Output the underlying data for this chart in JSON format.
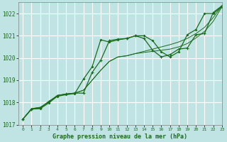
{
  "title": "Graphe pression niveau de la mer (hPa)",
  "bg_color": "#c0e4e4",
  "grid_color": "#ffffff",
  "line_color": "#1a6b1a",
  "xlim": [
    -0.5,
    23
  ],
  "ylim": [
    1017,
    1022.5
  ],
  "yticks": [
    1017,
    1018,
    1019,
    1020,
    1021,
    1022
  ],
  "xticks": [
    0,
    1,
    2,
    3,
    4,
    5,
    6,
    7,
    8,
    9,
    10,
    11,
    12,
    13,
    14,
    15,
    16,
    17,
    18,
    19,
    20,
    21,
    22,
    23
  ],
  "s1_x": [
    0,
    1,
    2,
    3,
    4,
    5,
    6,
    7,
    8,
    9,
    10,
    11,
    12,
    13,
    14,
    15,
    16,
    17,
    18,
    19,
    20,
    21,
    22,
    23
  ],
  "s1_y": [
    1017.25,
    1017.7,
    1017.75,
    1018.05,
    1018.3,
    1018.38,
    1018.42,
    1018.42,
    1019.35,
    1019.9,
    1020.78,
    1020.85,
    1020.88,
    1021.0,
    1020.88,
    1020.35,
    1020.05,
    1020.15,
    1020.4,
    1020.45,
    1021.05,
    1021.1,
    1022.05,
    1022.35
  ],
  "s2_x": [
    0,
    1,
    2,
    3,
    4,
    5,
    6,
    7,
    8,
    9,
    10,
    11,
    12,
    13,
    14,
    15,
    16,
    17,
    18,
    19,
    20,
    21,
    22,
    23
  ],
  "s2_y": [
    1017.25,
    1017.7,
    1017.72,
    1017.98,
    1018.28,
    1018.35,
    1018.4,
    1019.05,
    1019.6,
    1020.82,
    1020.72,
    1020.82,
    1020.88,
    1021.0,
    1021.0,
    1020.78,
    1020.28,
    1020.05,
    1020.28,
    1021.05,
    1021.28,
    1022.0,
    1022.0,
    1022.3
  ],
  "s3_x": [
    0,
    1,
    2,
    3,
    4,
    5,
    6,
    7,
    8,
    9,
    10,
    11,
    12,
    13,
    14,
    15,
    16,
    17,
    18,
    19,
    20,
    21,
    22,
    23
  ],
  "s3_y": [
    1017.25,
    1017.72,
    1017.78,
    1018.02,
    1018.32,
    1018.38,
    1018.42,
    1018.55,
    1019.0,
    1019.45,
    1019.85,
    1020.05,
    1020.1,
    1020.2,
    1020.25,
    1020.3,
    1020.35,
    1020.4,
    1020.5,
    1020.65,
    1020.9,
    1021.2,
    1021.65,
    1022.3
  ],
  "s4_x": [
    0,
    1,
    2,
    3,
    4,
    5,
    6,
    7,
    8,
    9,
    10,
    11,
    12,
    13,
    14,
    15,
    16,
    17,
    18,
    19,
    20,
    21,
    22,
    23
  ],
  "s4_y": [
    1017.25,
    1017.72,
    1017.78,
    1018.02,
    1018.32,
    1018.38,
    1018.42,
    1018.55,
    1019.0,
    1019.45,
    1019.85,
    1020.05,
    1020.1,
    1020.2,
    1020.3,
    1020.4,
    1020.5,
    1020.6,
    1020.72,
    1020.88,
    1021.1,
    1021.38,
    1021.82,
    1022.35
  ]
}
